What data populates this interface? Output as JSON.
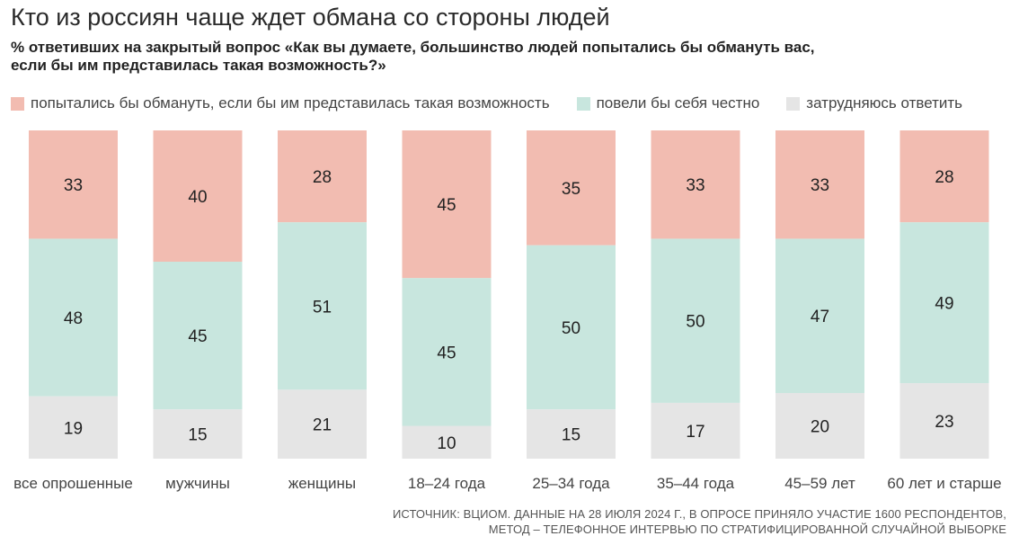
{
  "header": {
    "title": "Кто из россиян чаще ждет обмана со стороны людей",
    "subtitle_line1": "% ответивших на закрытый вопрос «Как вы думаете, большинство людей попытались бы обмануть вас,",
    "subtitle_line2": "если бы им представилась такая возможность?»"
  },
  "source": {
    "line1": "ИСТОЧНИК: ВЦИОМ. ДАННЫЕ НА 28 ИЮЛЯ 2024 Г., В ОПРОСЕ ПРИНЯЛО УЧАСТИЕ 1600 РЕСПОНДЕНТОВ,",
    "line2": "МЕТОД – ТЕЛЕФОННОЕ ИНТЕРВЬЮ ПО СТРАТИФИЦИРОВАННОЙ СЛУЧАЙНОЙ ВЫБОРКЕ"
  },
  "colors": {
    "deceive": "#f2bcb1",
    "honest": "#c8e6de",
    "unsure": "#e5e5e5",
    "label_text": "#222222",
    "category_text": "#444444"
  },
  "chart_data": {
    "type": "bar",
    "stacked": true,
    "orientation": "vertical",
    "percent_stacked": true,
    "stack_order": "top-to-bottom",
    "categories": [
      "все опрошенные",
      "мужчины",
      "женщины",
      "18–24 года",
      "25–34 года",
      "35–44 года",
      "45–59 лет",
      "60 лет и старше"
    ],
    "series": [
      {
        "name": "попытались бы обмануть, если бы им представилась такая возможность",
        "color_key": "deceive",
        "values": [
          33,
          40,
          28,
          45,
          35,
          33,
          33,
          28
        ]
      },
      {
        "name": "повели бы себя честно",
        "color_key": "honest",
        "values": [
          48,
          45,
          51,
          45,
          50,
          50,
          47,
          49
        ]
      },
      {
        "name": "затрудняюсь ответить",
        "color_key": "unsure",
        "values": [
          19,
          15,
          21,
          10,
          15,
          17,
          20,
          23
        ]
      }
    ],
    "legend_position": "top-left",
    "grid": false,
    "data_labels": true
  }
}
